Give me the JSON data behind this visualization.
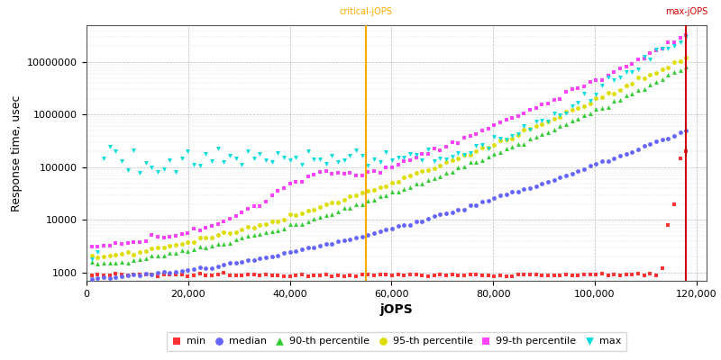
{
  "xlabel": "jOPS",
  "ylabel": "Response time, usec",
  "xlim": [
    0,
    122000
  ],
  "ylim": [
    700,
    50000000
  ],
  "x_ticks": [
    0,
    20000,
    40000,
    60000,
    80000,
    100000,
    120000
  ],
  "x_tick_labels": [
    "0",
    "20,000",
    "40,000",
    "60,000",
    "80,000",
    "100,000",
    "120,000"
  ],
  "y_ticks": [
    1000,
    10000,
    100000,
    1000000,
    10000000
  ],
  "y_tick_labels": [
    "1000",
    "10000",
    "100000",
    "1000000",
    "10000000"
  ],
  "critical_jops": 55000,
  "max_jops": 118000,
  "colors": {
    "min": "#ff3333",
    "median": "#6666ff",
    "p90": "#33cc33",
    "p95": "#dddd00",
    "p99": "#ff44ff",
    "max": "#00dddd"
  },
  "legend_entries": [
    "min",
    "median",
    "90-th percentile",
    "95-th percentile",
    "99-th percentile",
    "max"
  ],
  "background_color": "#ffffff",
  "grid_color": "#bbbbbb",
  "critical_color": "#ffaa00",
  "max_color": "#cc0000"
}
